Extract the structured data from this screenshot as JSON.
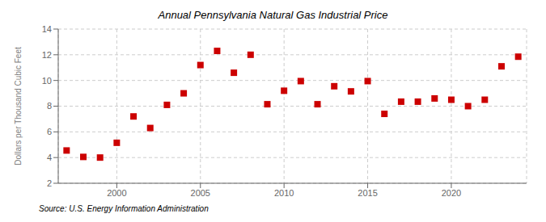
{
  "chart_data": {
    "type": "scatter",
    "title": "Annual Pennsylvania Natural Gas Industrial Price",
    "ylabel": "Dollars per Thousand Cubic Feet",
    "annotation": "Source: U.S. Energy Information Administration",
    "x": [
      1997,
      1998,
      1999,
      2000,
      2001,
      2002,
      2003,
      2004,
      2005,
      2006,
      2007,
      2008,
      2009,
      2010,
      2011,
      2012,
      2013,
      2014,
      2015,
      2016,
      2017,
      2018,
      2019,
      2020,
      2021,
      2022,
      2023,
      2024
    ],
    "values": [
      4.55,
      4.05,
      4.0,
      5.15,
      7.2,
      6.3,
      8.1,
      9.0,
      11.2,
      12.3,
      10.6,
      12.0,
      8.15,
      9.2,
      9.95,
      8.15,
      9.55,
      9.15,
      9.95,
      7.4,
      8.35,
      8.35,
      8.6,
      8.5,
      8.0,
      8.5,
      11.1,
      11.85
    ],
    "color": "#cc0000",
    "marker": "square",
    "xlim": [
      1996.5,
      2024.5
    ],
    "xticks": [
      2000,
      2005,
      2010,
      2015,
      2020
    ],
    "ylim": [
      2,
      14
    ],
    "yticks": [
      2,
      4,
      6,
      8,
      10,
      12,
      14
    ],
    "grid": true
  }
}
